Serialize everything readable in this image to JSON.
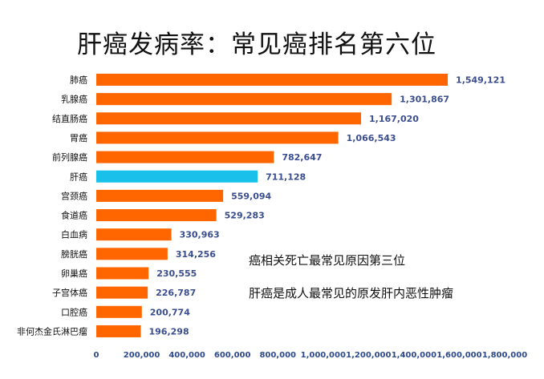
{
  "title": "肝癌发病率：常见癌排名第六位",
  "notes": [
    "癌相关死亡最常见原因第三位",
    "肝癌是成人最常见的原发肝内恶性肿瘤"
  ],
  "colors": {
    "bar": "#ff6600",
    "highlight": "#19c1ea",
    "value_text": "#3a4d8f",
    "tick_text": "#2e4a8c"
  },
  "chart_data": {
    "type": "bar",
    "orientation": "horizontal",
    "title": "肝癌发病率：常见癌排名第六位",
    "categories": [
      "肺癌",
      "乳腺癌",
      "结直肠癌",
      "胃癌",
      "前列腺癌",
      "肝癌",
      "宫颈癌",
      "食道癌",
      "白血病",
      "膀胱癌",
      "卵巢癌",
      "子宫体癌",
      "口腔癌",
      "非何杰金氏淋巴瘤"
    ],
    "values": [
      1549121,
      1301867,
      1167020,
      1066543,
      782647,
      711128,
      559094,
      529283,
      330963,
      314256,
      230555,
      226787,
      200774,
      196298
    ],
    "value_labels": [
      "1,549,121",
      "1,301,867",
      "1,167,020",
      "1,066,543",
      "782,647",
      "711,128",
      "559,094",
      "529,283",
      "330,963",
      "314,256",
      "230,555",
      "226,787",
      "200,774",
      "196,298"
    ],
    "highlight": "肝癌",
    "xlim": [
      0,
      1800000
    ],
    "xticks": [
      0,
      200000,
      400000,
      600000,
      800000,
      1000000,
      1200000,
      1400000,
      1600000,
      1800000
    ],
    "xtick_labels": [
      "0",
      "200,000",
      "400,000",
      "600,000",
      "800,000",
      "1,000,000",
      "1,200,000",
      "1,400,000",
      "1,600,000",
      "1,800,000"
    ],
    "grid": false,
    "legend": false
  }
}
